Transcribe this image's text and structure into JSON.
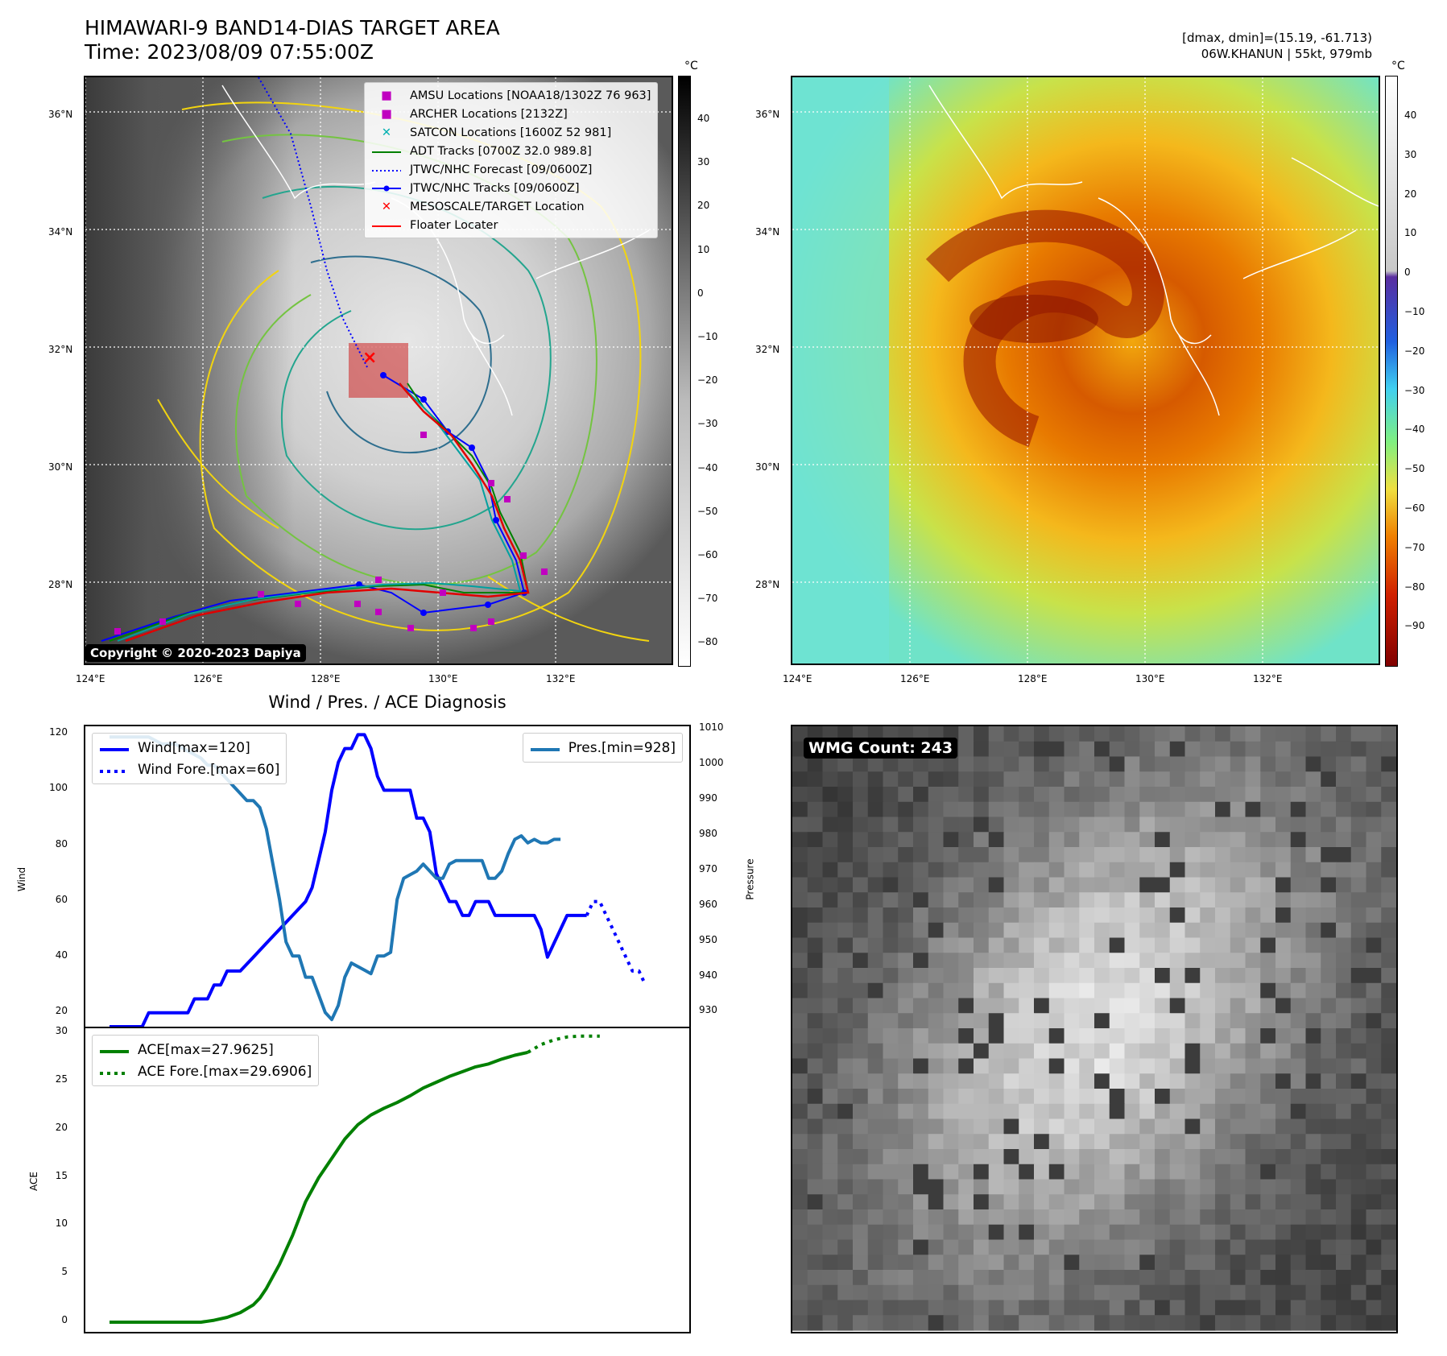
{
  "header": {
    "title_line1": "HIMAWARI-9 BAND14-DIAS TARGET AREA",
    "title_line2": "Time: 2023/08/09 07:55:00Z",
    "dmax_dmin": "[dmax, dmin]=(15.19, -61.713)",
    "storm_info": "06W.KHANUN | 55kt, 979mb"
  },
  "map_panels": {
    "lat_labels": [
      "36°N",
      "34°N",
      "32°N",
      "30°N",
      "28°N"
    ],
    "lon_labels": [
      "124°E",
      "126°E",
      "128°E",
      "130°E",
      "132°E"
    ],
    "copyright": "Copyright © 2020-2023 Dapiya",
    "legend": [
      {
        "label": "AMSU Locations [NOAA18/1302Z 76 963]",
        "symbol": "square",
        "color": "#c000c0"
      },
      {
        "label": "ARCHER Locations [2132Z]",
        "symbol": "square",
        "color": "#c000c0"
      },
      {
        "label": "SATCON Locations [1600Z 52 981]",
        "symbol": "x",
        "color": "#00b0b0"
      },
      {
        "label": "ADT Tracks [0700Z 32.0 989.8]",
        "symbol": "line",
        "color": "#008000"
      },
      {
        "label": "JTWC/NHC Forecast [09/0600Z]",
        "symbol": "dotted",
        "color": "#0000ff"
      },
      {
        "label": "JTWC/NHC Tracks [09/0600Z]",
        "symbol": "line-dot",
        "color": "#0000ff"
      },
      {
        "label": "MESOSCALE/TARGET Location",
        "symbol": "x",
        "color": "#ff0000"
      },
      {
        "label": "Floater Locater",
        "symbol": "line",
        "color": "#ff0000"
      }
    ],
    "colorbar_unit": "°C",
    "gray_colorbar_ticks": [
      "40",
      "30",
      "20",
      "10",
      "0",
      "−10",
      "−20",
      "−30",
      "−40",
      "−50",
      "−60",
      "−70",
      "−80"
    ],
    "color_colorbar_ticks": [
      "40",
      "30",
      "20",
      "10",
      "0",
      "−10",
      "−20",
      "−30",
      "−40",
      "−50",
      "−60",
      "−70",
      "−80",
      "−90"
    ]
  },
  "wmg": {
    "badge": "WMG Count: 243"
  },
  "chart_data": [
    {
      "type": "line",
      "title": "Wind / Pres. / ACE Diagnosis",
      "ylabel": "Wind",
      "ylabel_right": "Pressure",
      "ylim": [
        15,
        123
      ],
      "ylim_right": [
        926,
        1011
      ],
      "yticks": [
        "20",
        "40",
        "60",
        "80",
        "100",
        "120"
      ],
      "yticks_right": [
        "930",
        "940",
        "950",
        "960",
        "970",
        "980",
        "990",
        "1000",
        "1010"
      ],
      "legend_left": [
        "Wind[max=120]",
        "Wind Fore.[max=60]"
      ],
      "legend_right": [
        "Pres.[min=928]"
      ],
      "series": [
        {
          "name": "Wind[max=120]",
          "color": "#0000ff",
          "style": "solid",
          "values": [
            [
              0,
              15
            ],
            [
              5,
              15
            ],
            [
              6,
              20
            ],
            [
              9,
              20
            ],
            [
              12,
              20
            ],
            [
              13,
              25
            ],
            [
              15,
              25
            ],
            [
              16,
              30
            ],
            [
              17,
              30
            ],
            [
              18,
              35
            ],
            [
              20,
              35
            ],
            [
              22,
              40
            ],
            [
              24,
              45
            ],
            [
              26,
              50
            ],
            [
              28,
              55
            ],
            [
              30,
              60
            ],
            [
              31,
              65
            ],
            [
              32,
              75
            ],
            [
              33,
              85
            ],
            [
              34,
              100
            ],
            [
              35,
              110
            ],
            [
              36,
              115
            ],
            [
              37,
              115
            ],
            [
              38,
              120
            ],
            [
              39,
              120
            ],
            [
              40,
              115
            ],
            [
              41,
              105
            ],
            [
              42,
              100
            ],
            [
              43,
              100
            ],
            [
              45,
              100
            ],
            [
              46,
              100
            ],
            [
              47,
              90
            ],
            [
              48,
              90
            ],
            [
              49,
              85
            ],
            [
              50,
              70
            ],
            [
              51,
              65
            ],
            [
              52,
              60
            ],
            [
              53,
              60
            ],
            [
              54,
              55
            ],
            [
              55,
              55
            ],
            [
              56,
              60
            ],
            [
              58,
              60
            ],
            [
              59,
              55
            ],
            [
              61,
              55
            ],
            [
              63,
              55
            ],
            [
              65,
              55
            ],
            [
              66,
              50
            ],
            [
              67,
              40
            ],
            [
              68,
              45
            ],
            [
              69,
              50
            ],
            [
              70,
              55
            ],
            [
              72,
              55
            ],
            [
              73,
              55
            ]
          ]
        },
        {
          "name": "Wind Fore.[max=60]",
          "color": "#0000ff",
          "style": "dotted",
          "values": [
            [
              73,
              55
            ],
            [
              74,
              60
            ],
            [
              75,
              60
            ],
            [
              76,
              55
            ],
            [
              77,
              50
            ],
            [
              78,
              45
            ],
            [
              79,
              40
            ],
            [
              80,
              35
            ],
            [
              81,
              35
            ],
            [
              82,
              30
            ]
          ]
        },
        {
          "name": "Pres.[min=928]",
          "color": "#1f77b4",
          "style": "solid",
          "axis": "right",
          "values": [
            [
              0,
              1008
            ],
            [
              2,
              1008
            ],
            [
              4,
              1008
            ],
            [
              6,
              1008
            ],
            [
              8,
              1006
            ],
            [
              10,
              1006
            ],
            [
              12,
              1004
            ],
            [
              14,
              1002
            ],
            [
              15,
              1000
            ],
            [
              16,
              1000
            ],
            [
              17,
              998
            ],
            [
              18,
              996
            ],
            [
              19,
              994
            ],
            [
              20,
              992
            ],
            [
              21,
              990
            ],
            [
              22,
              990
            ],
            [
              23,
              988
            ],
            [
              24,
              982
            ],
            [
              25,
              972
            ],
            [
              26,
              962
            ],
            [
              27,
              950
            ],
            [
              28,
              946
            ],
            [
              29,
              946
            ],
            [
              30,
              940
            ],
            [
              31,
              940
            ],
            [
              32,
              935
            ],
            [
              33,
              930
            ],
            [
              34,
              928
            ],
            [
              35,
              932
            ],
            [
              36,
              940
            ],
            [
              37,
              944
            ],
            [
              38,
              943
            ],
            [
              39,
              942
            ],
            [
              40,
              941
            ],
            [
              41,
              946
            ],
            [
              42,
              946
            ],
            [
              43,
              947
            ],
            [
              44,
              962
            ],
            [
              45,
              968
            ],
            [
              46,
              969
            ],
            [
              47,
              970
            ],
            [
              48,
              972
            ],
            [
              49,
              970
            ],
            [
              50,
              968
            ],
            [
              51,
              968
            ],
            [
              52,
              972
            ],
            [
              53,
              973
            ],
            [
              54,
              973
            ],
            [
              55,
              973
            ],
            [
              56,
              973
            ],
            [
              57,
              973
            ],
            [
              58,
              968
            ],
            [
              59,
              968
            ],
            [
              60,
              970
            ],
            [
              61,
              975
            ],
            [
              62,
              979
            ],
            [
              63,
              980
            ],
            [
              64,
              978
            ],
            [
              65,
              979
            ],
            [
              66,
              978
            ],
            [
              67,
              978
            ],
            [
              68,
              979
            ],
            [
              69,
              979
            ]
          ]
        }
      ]
    },
    {
      "type": "line",
      "ylabel": "ACE",
      "ylim": [
        -1,
        30.5
      ],
      "yticks": [
        "0",
        "5",
        "10",
        "15",
        "20",
        "25",
        "30"
      ],
      "legend": [
        "ACE[max=27.9625]",
        "ACE Fore.[max=29.6906]"
      ],
      "series": [
        {
          "name": "ACE[max=27.9625]",
          "color": "#008000",
          "style": "solid",
          "values": [
            [
              0,
              0
            ],
            [
              14,
              0
            ],
            [
              16,
              0.2
            ],
            [
              18,
              0.5
            ],
            [
              20,
              1.0
            ],
            [
              22,
              1.8
            ],
            [
              23,
              2.5
            ],
            [
              24,
              3.5
            ],
            [
              26,
              6.0
            ],
            [
              28,
              9.0
            ],
            [
              30,
              12.5
            ],
            [
              32,
              15.0
            ],
            [
              34,
              17.0
            ],
            [
              36,
              19.0
            ],
            [
              38,
              20.5
            ],
            [
              40,
              21.5
            ],
            [
              42,
              22.2
            ],
            [
              44,
              22.8
            ],
            [
              46,
              23.5
            ],
            [
              48,
              24.3
            ],
            [
              50,
              24.9
            ],
            [
              52,
              25.5
            ],
            [
              54,
              26.0
            ],
            [
              56,
              26.5
            ],
            [
              58,
              26.8
            ],
            [
              60,
              27.3
            ],
            [
              62,
              27.7
            ],
            [
              64,
              28.0
            ]
          ]
        },
        {
          "name": "ACE Fore.[max=29.6906]",
          "color": "#008000",
          "style": "dotted",
          "values": [
            [
              64,
              28.0
            ],
            [
              66,
              28.8
            ],
            [
              68,
              29.3
            ],
            [
              70,
              29.6
            ],
            [
              72,
              29.69
            ],
            [
              75,
              29.69
            ]
          ]
        }
      ]
    }
  ]
}
